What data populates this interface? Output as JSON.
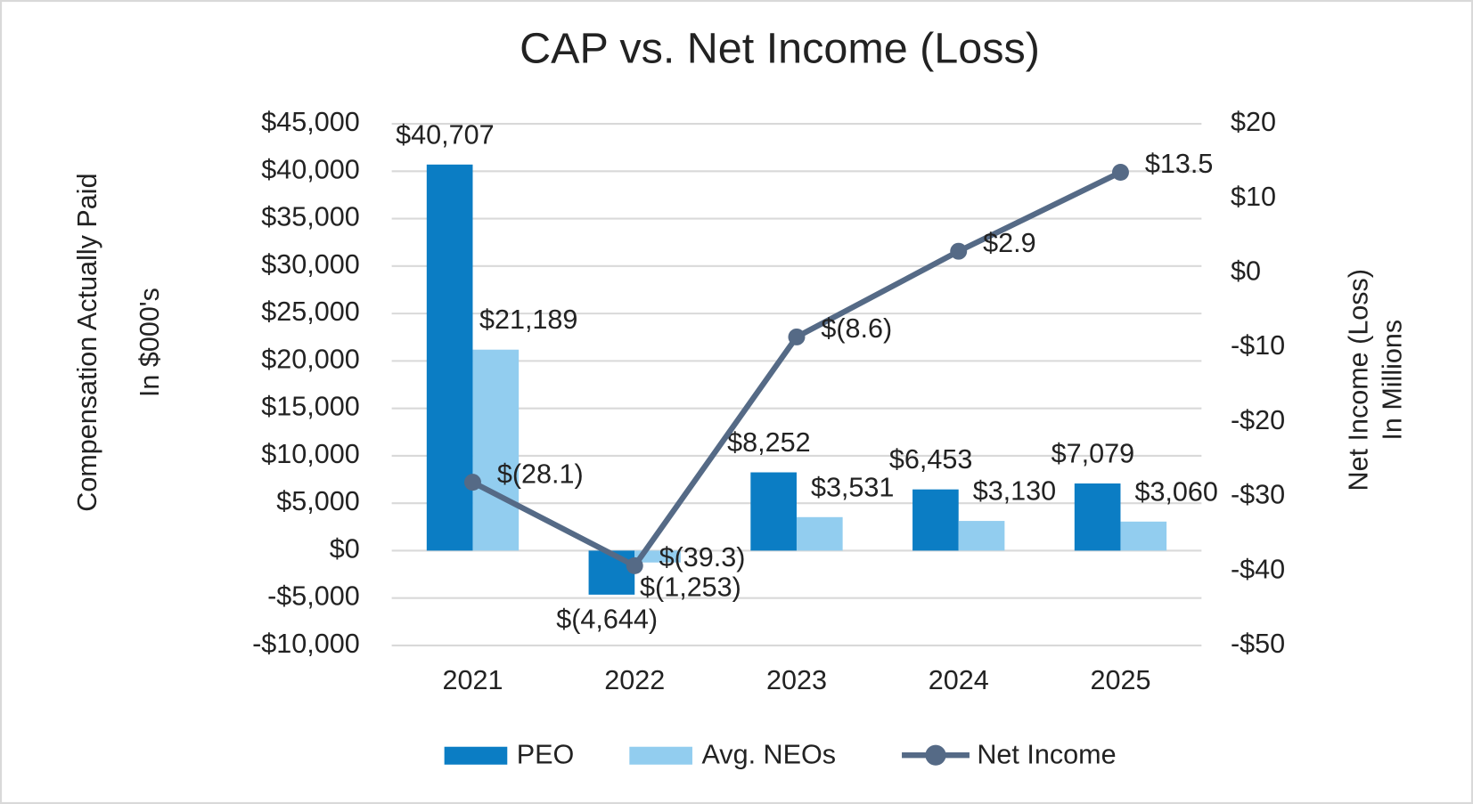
{
  "chart_data": {
    "type": "bar-line",
    "title": "CAP vs. Net Income (Loss)",
    "y_label": [
      "Compensation Actually Paid",
      "In $000's"
    ],
    "y2_label": [
      "Net Income (Loss)",
      "In Millions"
    ],
    "categories": [
      "2021",
      "2022",
      "2023",
      "2024",
      "2025"
    ],
    "ylim": [
      -10000,
      45000
    ],
    "yticks": [
      {
        "value": -10000,
        "label": "-$10,000"
      },
      {
        "value": -5000,
        "label": "-$5,000"
      },
      {
        "value": 0,
        "label": "$0"
      },
      {
        "value": 5000,
        "label": "$5,000"
      },
      {
        "value": 10000,
        "label": "$10,000"
      },
      {
        "value": 15000,
        "label": "$15,000"
      },
      {
        "value": 20000,
        "label": "$20,000"
      },
      {
        "value": 25000,
        "label": "$25,000"
      },
      {
        "value": 30000,
        "label": "$30,000"
      },
      {
        "value": 35000,
        "label": "$35,000"
      },
      {
        "value": 40000,
        "label": "$40,000"
      },
      {
        "value": 45000,
        "label": "$45,000"
      }
    ],
    "y2lim": [
      -50,
      20
    ],
    "y2ticks": [
      {
        "value": -50,
        "label": "-$50"
      },
      {
        "value": -40,
        "label": "-$40"
      },
      {
        "value": -30,
        "label": "-$30"
      },
      {
        "value": -20,
        "label": "-$20"
      },
      {
        "value": -10,
        "label": "-$10"
      },
      {
        "value": 0,
        "label": "$0"
      },
      {
        "value": 10,
        "label": "$10"
      },
      {
        "value": 20,
        "label": "$20"
      }
    ],
    "grid": true,
    "series": [
      {
        "name": "PEO",
        "type": "bar",
        "color": "#0b7dc4",
        "values": [
          40707,
          -4644,
          8252,
          6453,
          7079
        ],
        "value_labels": [
          "$40,707",
          "$(4,644)",
          "$8,252",
          "$6,453",
          "$7,079"
        ]
      },
      {
        "name": "Avg. NEOs",
        "type": "bar",
        "color": "#92cdef",
        "values": [
          21189,
          -1253,
          3531,
          3130,
          3060
        ],
        "value_labels": [
          "$21,189",
          "$(1,253)",
          "$3,531",
          "$3,130",
          "$3,060"
        ]
      },
      {
        "name": "Net Income",
        "type": "line",
        "axis": "y2",
        "color": "#556a86",
        "values": [
          -28.1,
          -39.3,
          -8.6,
          2.9,
          13.5
        ],
        "value_labels": [
          "$(28.1)",
          "$(39.3)",
          "$(8.6)",
          "$2.9",
          "$13.5"
        ]
      }
    ]
  }
}
